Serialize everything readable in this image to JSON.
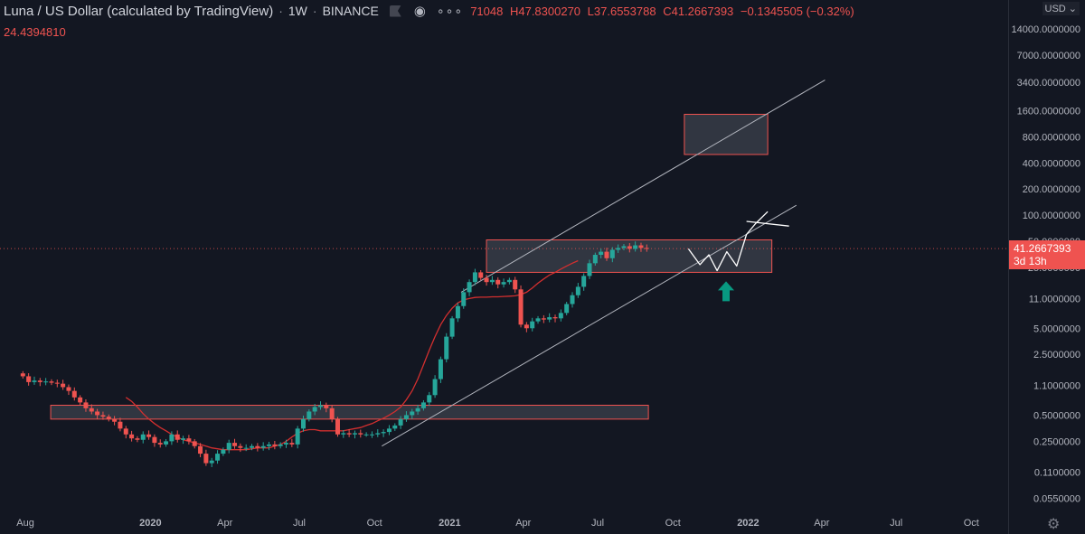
{
  "header": {
    "symbol_title": "Luna / US Dollar (calculated by TradingView)",
    "interval": "1W",
    "exchange": "BINANCE",
    "open_partial": "71048",
    "high": "H47.8300270",
    "low": "L37.6553788",
    "close": "C41.2667393",
    "change": "−0.1345505 (−0.32%)",
    "indicator_value": "24.4394810",
    "currency": "USD ⌄"
  },
  "price_label": {
    "value": "41.2667393",
    "countdown": "3d 13h"
  },
  "colors": {
    "background": "#131722",
    "up": "#26a69a",
    "down": "#ef5350",
    "ma": "#d32f2f",
    "zone_fill": "rgba(210,215,230,0.16)",
    "zone_border": "#ef5350",
    "trendline": "#b2b5be",
    "arrow": "#089981"
  },
  "chart_data": {
    "type": "candlestick",
    "y_scale": "log",
    "ylim": [
      0.045,
      30000
    ],
    "y_ticks": [
      "14000.0000000",
      "7000.0000000",
      "3400.0000000",
      "1600.0000000",
      "800.0000000",
      "400.0000000",
      "200.0000000",
      "100.0000000",
      "50.0000000",
      "25.0000000",
      "11.0000000",
      "5.0000000",
      "2.5000000",
      "1.1000000",
      "0.5000000",
      "0.2500000",
      "0.1100000",
      "0.0550000"
    ],
    "x_ticks": [
      {
        "label": "Aug",
        "date": "2019-08-01",
        "bold": false
      },
      {
        "label": "2020",
        "date": "2020-01-01",
        "bold": true
      },
      {
        "label": "Apr",
        "date": "2020-04-01",
        "bold": false
      },
      {
        "label": "Jul",
        "date": "2020-07-01",
        "bold": false
      },
      {
        "label": "Oct",
        "date": "2020-10-01",
        "bold": false
      },
      {
        "label": "2021",
        "date": "2021-01-01",
        "bold": true
      },
      {
        "label": "Apr",
        "date": "2021-04-01",
        "bold": false
      },
      {
        "label": "Jul",
        "date": "2021-07-01",
        "bold": false
      },
      {
        "label": "Oct",
        "date": "2021-10-01",
        "bold": false
      },
      {
        "label": "2022",
        "date": "2022-01-01",
        "bold": true
      },
      {
        "label": "Apr",
        "date": "2022-04-01",
        "bold": false
      },
      {
        "label": "Jul",
        "date": "2022-07-01",
        "bold": false
      },
      {
        "label": "Oct",
        "date": "2022-10-01",
        "bold": false
      }
    ],
    "xlim": [
      "2019-07-01",
      "2022-11-15"
    ],
    "closes": [
      1.4,
      1.2,
      1.25,
      1.2,
      1.22,
      1.18,
      1.15,
      1.05,
      0.95,
      0.8,
      0.7,
      0.6,
      0.55,
      0.5,
      0.48,
      0.45,
      0.42,
      0.35,
      0.3,
      0.27,
      0.26,
      0.3,
      0.28,
      0.24,
      0.23,
      0.25,
      0.3,
      0.26,
      0.27,
      0.25,
      0.22,
      0.18,
      0.14,
      0.15,
      0.18,
      0.2,
      0.24,
      0.22,
      0.21,
      0.21,
      0.22,
      0.21,
      0.22,
      0.23,
      0.22,
      0.23,
      0.24,
      0.23,
      0.35,
      0.45,
      0.55,
      0.62,
      0.65,
      0.6,
      0.45,
      0.3,
      0.31,
      0.3,
      0.31,
      0.3,
      0.3,
      0.3,
      0.31,
      0.32,
      0.35,
      0.38,
      0.45,
      0.5,
      0.55,
      0.6,
      0.7,
      0.85,
      1.3,
      2.2,
      4.0,
      6.5,
      9.0,
      13.0,
      17.0,
      22.0,
      19.0,
      17.0,
      18.0,
      16.0,
      17.0,
      18.0,
      14.0,
      5.5,
      5.0,
      6.0,
      6.5,
      6.3,
      6.7,
      6.5,
      7.5,
      9.5,
      12.0,
      15.0,
      20.0,
      28.0,
      35.0,
      38.0,
      32.0,
      40.0,
      42.0,
      44.0,
      41.0,
      45.0,
      42.0,
      41.27
    ],
    "series": [
      {
        "name": "MA",
        "start_index": 18,
        "values": [
          0.8,
          0.72,
          0.62,
          0.52,
          0.45,
          0.4,
          0.36,
          0.33,
          0.3,
          0.28,
          0.26,
          0.25,
          0.24,
          0.23,
          0.22,
          0.21,
          0.205,
          0.2,
          0.2,
          0.2,
          0.2,
          0.2,
          0.205,
          0.21,
          0.21,
          0.21,
          0.22,
          0.23,
          0.25,
          0.28,
          0.31,
          0.33,
          0.34,
          0.34,
          0.33,
          0.33,
          0.33,
          0.33,
          0.33,
          0.34,
          0.35,
          0.36,
          0.38,
          0.4,
          0.43,
          0.46,
          0.5,
          0.55,
          0.62,
          0.75,
          0.95,
          1.3,
          1.9,
          2.8,
          4.0,
          5.5,
          7.0,
          8.5,
          9.8,
          10.6,
          11.0,
          11.3,
          11.4,
          11.4,
          11.5,
          11.5,
          11.6,
          11.7,
          11.8,
          12.2,
          13.0,
          14.5,
          16.5,
          18.5,
          20.5,
          22.0,
          24.0,
          26.0,
          28.0,
          30.0
        ]
      }
    ],
    "zones": [
      {
        "from": "2019-09-01",
        "to": "2021-09-01",
        "low": 0.45,
        "high": 0.65
      },
      {
        "from": "2021-02-15",
        "to": "2022-01-30",
        "low": 22,
        "high": 52
      },
      {
        "from": "2021-10-15",
        "to": "2022-01-25",
        "low": 500,
        "high": 1450
      }
    ],
    "channel_lines": [
      {
        "from": {
          "date": "2020-10-10",
          "value": 0.22
        },
        "to": {
          "date": "2022-03-01",
          "value": 130
        }
      },
      {
        "from": {
          "date": "2021-01-15",
          "value": 13
        },
        "to": {
          "date": "2022-04-05",
          "value": 3600
        }
      }
    ],
    "projection_path": [
      {
        "date": "2021-10-20",
        "value": 41
      },
      {
        "date": "2021-11-03",
        "value": 27
      },
      {
        "date": "2021-11-14",
        "value": 35
      },
      {
        "date": "2021-11-24",
        "value": 23
      },
      {
        "date": "2021-12-06",
        "value": 38
      },
      {
        "date": "2021-12-18",
        "value": 26
      },
      {
        "date": "2021-12-30",
        "value": 60
      },
      {
        "date": "2022-01-10",
        "value": 80
      },
      {
        "date": "2022-01-25",
        "value": 110
      }
    ],
    "projection_tick": [
      {
        "date": "2021-12-30",
        "value": 85
      },
      {
        "date": "2022-02-20",
        "value": 75
      }
    ],
    "arrow": {
      "date": "2021-12-05",
      "value": 13,
      "direction": "up"
    },
    "last_price": 41.2667393,
    "grid": false
  }
}
